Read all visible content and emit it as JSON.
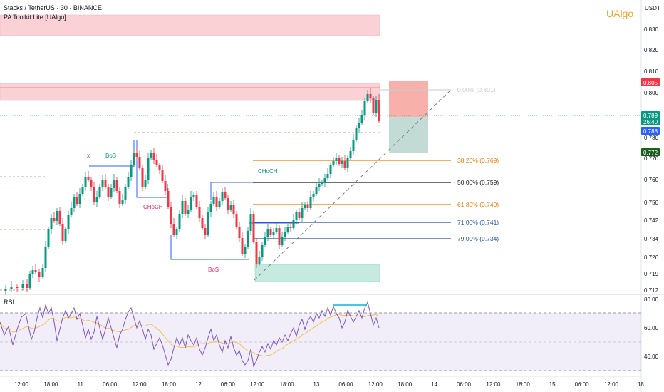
{
  "header": {
    "title": "Stacks / TetherUS · 30 · BINANCE",
    "indicator": "PA Toolkit Lite [UAlgo]",
    "brand": "UAlgo",
    "currency": "USDT"
  },
  "chart_data": {
    "type": "candlestick",
    "symbol": "Stacks / TetherUS",
    "interval": "30",
    "exchange": "BINANCE",
    "price_axis": {
      "ticks": [
        "0.830",
        "0.820",
        "0.810",
        "0.800",
        "0.780",
        "0.770",
        "0.760",
        "0.750",
        "0.742",
        "0.734",
        "0.726",
        "0.719",
        "0.712"
      ],
      "badges": [
        {
          "value": "0.805",
          "color": "#f23645"
        },
        {
          "value": "0.789",
          "sub": "26:40",
          "color": "#089981"
        },
        {
          "value": "0.788",
          "color": "#2962ff"
        },
        {
          "value": "0.772",
          "color": "#1b5e20"
        }
      ]
    },
    "time_axis": [
      "12:00",
      "18:00",
      "11",
      "06:00",
      "12:00",
      "18:00",
      "12",
      "06:00",
      "12:00",
      "18:00",
      "13",
      "06:00",
      "12:00",
      "18:00",
      "14",
      "06:00",
      "12:00",
      "18:00",
      "15",
      "06:00",
      "12:00",
      "18"
    ],
    "fibonacci": [
      {
        "label": "0.00% (0.801)",
        "level": 0.801,
        "color": "#c7c9d1"
      },
      {
        "label": "38.20% (0.769)",
        "level": 0.769,
        "color": "#f57c00"
      },
      {
        "label": "50.00% (0.759)",
        "level": 0.759,
        "color": "#131722"
      },
      {
        "label": "61.80% (0.749)",
        "level": 0.749,
        "color": "#f57c00"
      },
      {
        "label": "71.00% (0.741)",
        "level": 0.741,
        "color": "#1e53b0"
      },
      {
        "label": "79.00% (0.734)",
        "level": 0.734,
        "color": "#1e53b0"
      }
    ],
    "structure_labels": [
      {
        "text": "BoS",
        "color": "#089981"
      },
      {
        "text": "CHoCH",
        "color": "#e91e63"
      },
      {
        "text": "CHoCH",
        "color": "#089981"
      },
      {
        "text": "BoS",
        "color": "#e91e63"
      },
      {
        "text": "x",
        "color": "#9c27b0"
      }
    ],
    "rsi": {
      "label": "RSI",
      "ticks": [
        "80.00",
        "60.00",
        "40.00"
      ]
    }
  }
}
